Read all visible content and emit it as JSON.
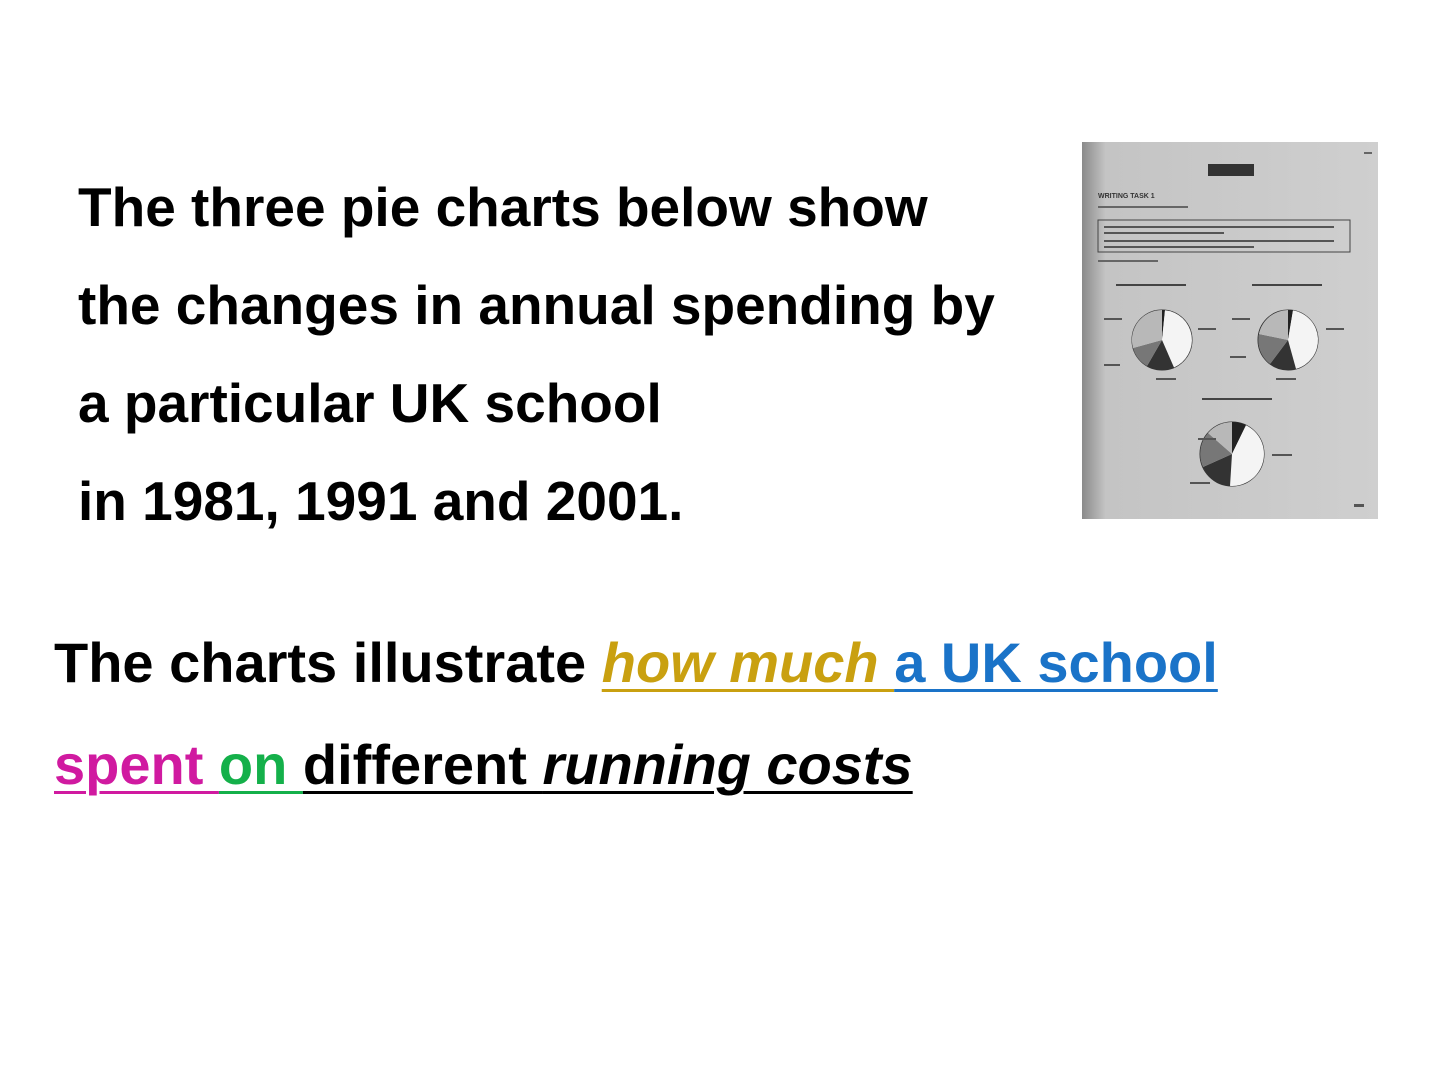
{
  "intro": {
    "lines": [
      "The three pie charts below show",
      "the changes in annual spending by",
      "a particular UK school",
      "in 1981, 1991 and 2001."
    ]
  },
  "photo": {
    "caption": "WRITING TASK 1"
  },
  "answer": {
    "line1_plain": "The charts illustrate ",
    "how_much": "how much ",
    "uk_school": "a UK school",
    "spent": "spent ",
    "on": "on ",
    "different": "different ",
    "running_costs": "running costs"
  },
  "colors": {
    "how_much": "#c9a010",
    "uk_school": "#1a73c8",
    "spent": "#d01aa0",
    "on": "#14b04a"
  }
}
